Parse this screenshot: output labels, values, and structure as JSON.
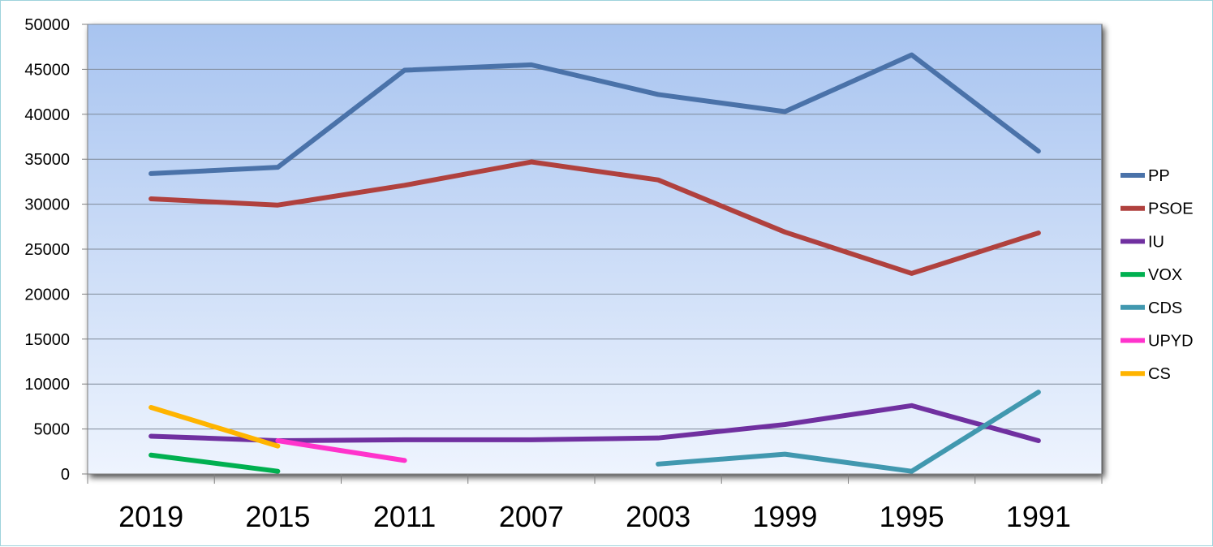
{
  "chart_data": {
    "type": "line",
    "title": "",
    "xlabel": "",
    "ylabel": "",
    "categories": [
      "2019",
      "2015",
      "2011",
      "2007",
      "2003",
      "1999",
      "1995",
      "1991"
    ],
    "ylim": [
      0,
      50000
    ],
    "y_ticks": [
      "0",
      "5000",
      "10000",
      "15000",
      "20000",
      "25000",
      "30000",
      "35000",
      "40000",
      "45000",
      "50000"
    ],
    "grid": "horizontal",
    "legend_position": "right",
    "series": [
      {
        "name": "PP",
        "color": "#4A72A9",
        "values": [
          33400,
          34100,
          44900,
          45500,
          42200,
          40300,
          46600,
          35900
        ]
      },
      {
        "name": "PSOE",
        "color": "#B0413E",
        "values": [
          30600,
          29900,
          32100,
          34700,
          32700,
          26900,
          22300,
          26800
        ]
      },
      {
        "name": "IU",
        "color": "#7030A0",
        "values": [
          4200,
          3700,
          3800,
          3800,
          4000,
          5500,
          7600,
          3700
        ]
      },
      {
        "name": "VOX",
        "color": "#00B050",
        "values": [
          2100,
          300,
          null,
          null,
          null,
          null,
          null,
          null
        ]
      },
      {
        "name": "CDS",
        "color": "#4198AF",
        "values": [
          null,
          null,
          null,
          null,
          1100,
          2200,
          300,
          9100
        ]
      },
      {
        "name": "UPYD",
        "color": "#FF33CC",
        "values": [
          null,
          3700,
          1500,
          null,
          null,
          null,
          null,
          null
        ]
      },
      {
        "name": "CS",
        "color": "#FFB400",
        "values": [
          7400,
          3100,
          null,
          null,
          null,
          null,
          null,
          null
        ]
      }
    ]
  }
}
